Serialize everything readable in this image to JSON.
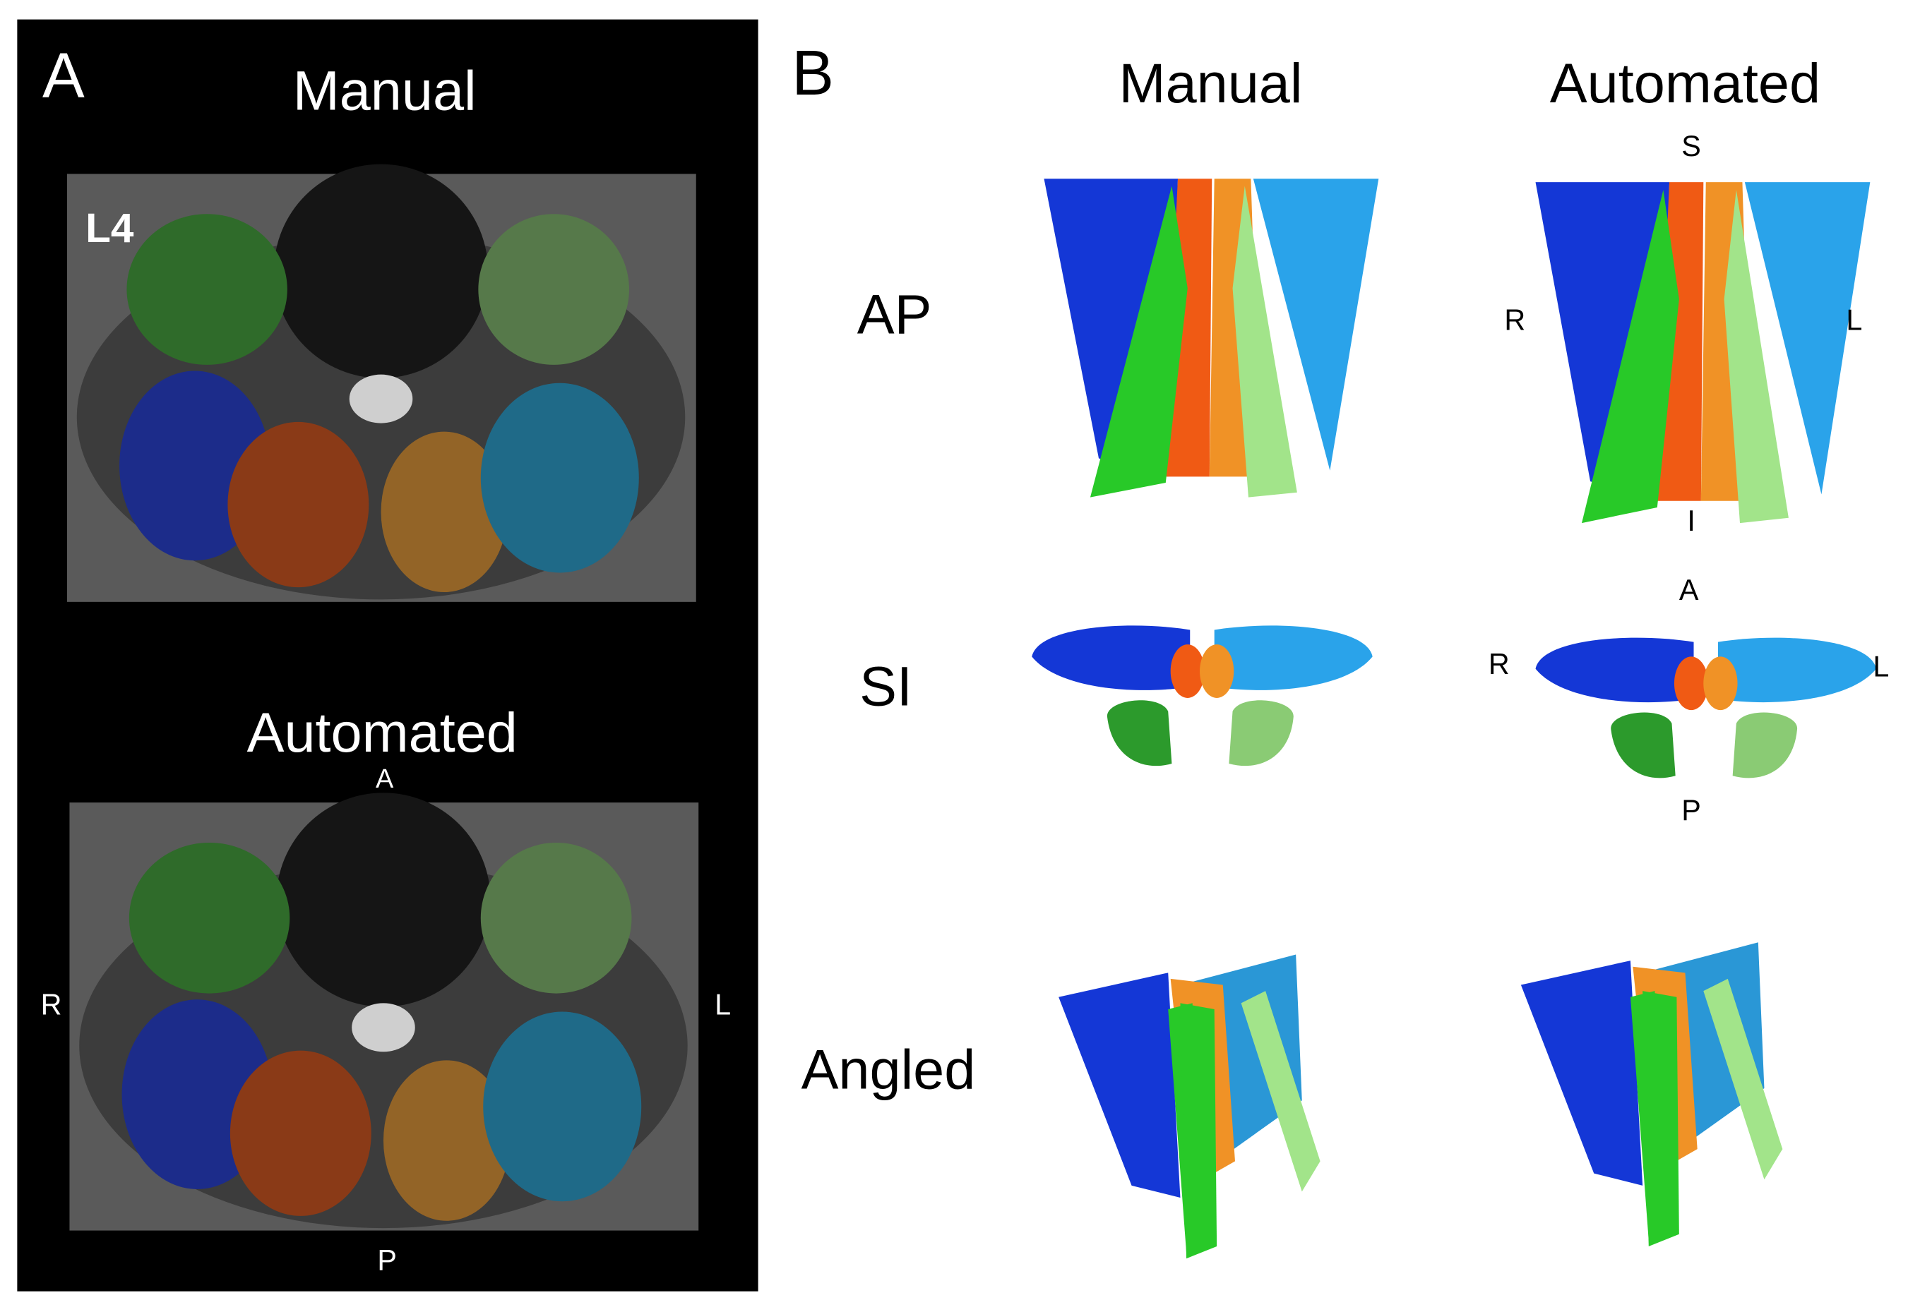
{
  "panel_a": {
    "label": "A",
    "top": {
      "title": "Manual",
      "level": "L4"
    },
    "bottom": {
      "title": "Automated",
      "orientation": {
        "anterior": "A",
        "right": "R",
        "left": "L",
        "posterior": "P"
      }
    }
  },
  "panel_b": {
    "label": "B",
    "columns": [
      "Manual",
      "Automated"
    ],
    "rows": [
      "AP",
      "SI",
      "Angled"
    ],
    "ap_orientation": {
      "superior": "S",
      "right": "R",
      "left": "L",
      "inferior": "I"
    },
    "si_orientation": {
      "anterior": "A",
      "right": "R",
      "left": "L",
      "posterior": "P"
    }
  }
}
